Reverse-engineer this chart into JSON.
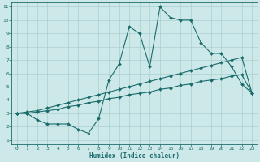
{
  "xlabel": "Humidex (Indice chaleur)",
  "bg_color": "#cde8e8",
  "grid_color": "#aacfcf",
  "line_color": "#1a6b6b",
  "xlim": [
    -0.5,
    23.5
  ],
  "ylim": [
    0.7,
    11.3
  ],
  "xticks": [
    0,
    1,
    2,
    3,
    4,
    5,
    6,
    7,
    8,
    9,
    10,
    11,
    12,
    13,
    14,
    15,
    16,
    17,
    18,
    19,
    20,
    21,
    22,
    23
  ],
  "yticks": [
    1,
    2,
    3,
    4,
    5,
    6,
    7,
    8,
    9,
    10,
    11
  ],
  "line1_x": [
    0,
    1,
    2,
    3,
    4,
    5,
    6,
    7,
    8,
    9,
    10,
    11,
    12,
    13,
    14,
    15,
    16,
    17,
    18,
    19,
    20,
    21,
    22,
    23
  ],
  "line1_y": [
    3.0,
    3.0,
    2.5,
    2.2,
    2.2,
    2.2,
    1.8,
    1.5,
    2.6,
    5.5,
    6.7,
    9.5,
    9.0,
    6.5,
    11.0,
    10.2,
    10.0,
    10.0,
    8.3,
    7.5,
    7.5,
    6.5,
    5.2,
    4.5
  ],
  "line2_x": [
    0,
    1,
    2,
    3,
    4,
    5,
    6,
    7,
    8,
    9,
    10,
    11,
    12,
    13,
    14,
    15,
    16,
    17,
    18,
    19,
    20,
    21,
    22,
    23
  ],
  "line2_y": [
    3.0,
    3.1,
    3.2,
    3.4,
    3.6,
    3.8,
    4.0,
    4.2,
    4.4,
    4.6,
    4.8,
    5.0,
    5.2,
    5.4,
    5.6,
    5.8,
    6.0,
    6.2,
    6.4,
    6.6,
    6.8,
    7.0,
    7.2,
    4.5
  ],
  "line3_x": [
    0,
    1,
    2,
    3,
    4,
    5,
    6,
    7,
    8,
    9,
    10,
    11,
    12,
    13,
    14,
    15,
    16,
    17,
    18,
    19,
    20,
    21,
    22,
    23
  ],
  "line3_y": [
    3.0,
    3.0,
    3.1,
    3.2,
    3.3,
    3.5,
    3.6,
    3.8,
    3.9,
    4.1,
    4.2,
    4.4,
    4.5,
    4.6,
    4.8,
    4.9,
    5.1,
    5.2,
    5.4,
    5.5,
    5.6,
    5.8,
    5.9,
    4.5
  ]
}
